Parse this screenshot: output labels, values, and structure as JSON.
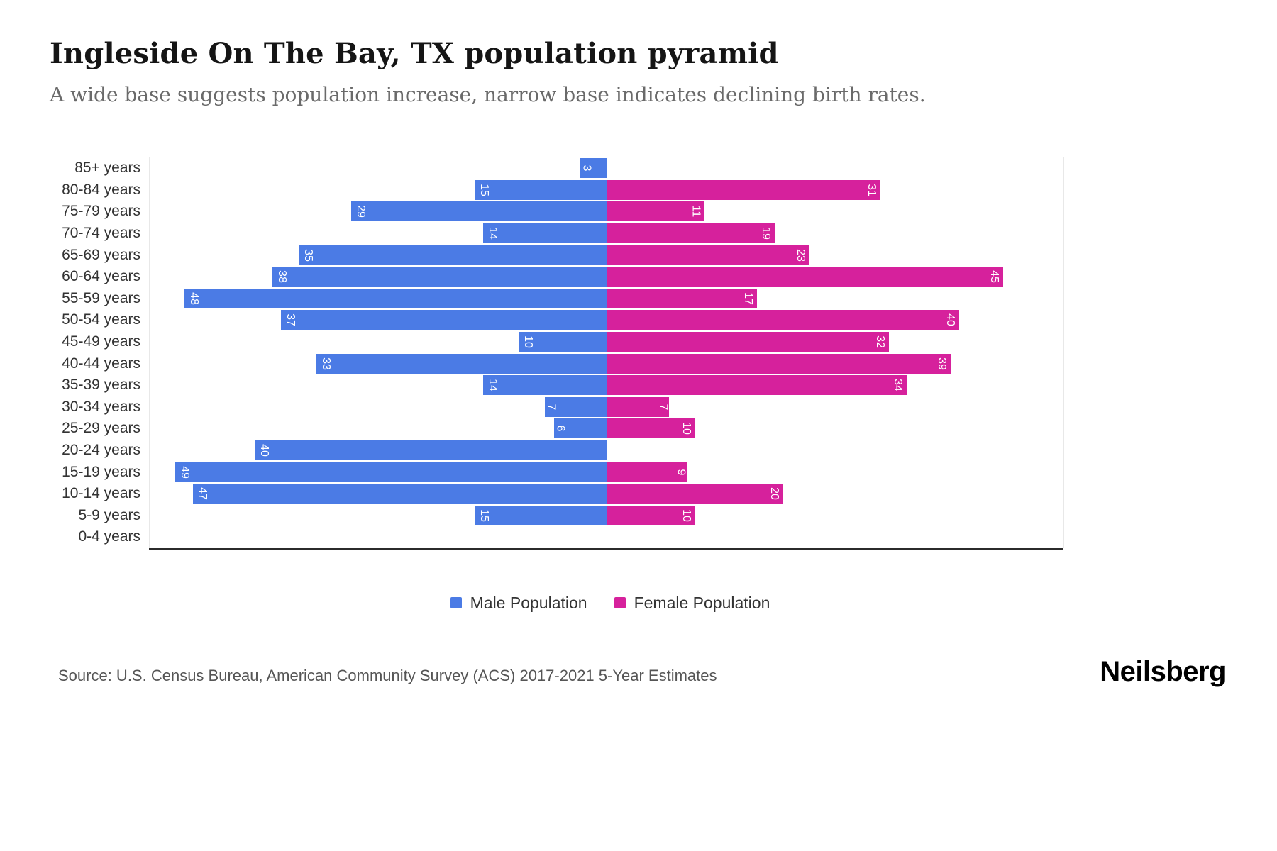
{
  "chart_data": {
    "type": "bar",
    "variant": "population-pyramid",
    "title": "Ingleside On The Bay, TX population pyramid",
    "subtitle": "A wide base suggests population increase, narrow base indicates declining birth rates.",
    "categories": [
      "85+ years",
      "80-84 years",
      "75-79 years",
      "70-74 years",
      "65-69 years",
      "60-64 years",
      "55-59 years",
      "50-54 years",
      "45-49 years",
      "40-44 years",
      "35-39 years",
      "30-34 years",
      "25-29 years",
      "20-24 years",
      "15-19 years",
      "10-14 years",
      "5-9 years",
      "0-4 years"
    ],
    "series": [
      {
        "name": "Male Population",
        "color": "#4b7be5",
        "values": [
          3,
          15,
          29,
          14,
          35,
          38,
          48,
          37,
          10,
          33,
          14,
          7,
          6,
          40,
          49,
          47,
          15,
          0
        ]
      },
      {
        "name": "Female Population",
        "color": "#d6219c",
        "values": [
          0,
          31,
          11,
          19,
          23,
          45,
          17,
          40,
          32,
          39,
          34,
          7,
          10,
          0,
          9,
          20,
          10,
          0
        ]
      }
    ],
    "xmax_per_side": 52,
    "grid": "vertical-light",
    "legend_position": "bottom"
  },
  "footer": {
    "source": "Source: U.S. Census Bureau, American Community Survey (ACS) 2017-2021 5-Year Estimates",
    "logo": "Neilsberg"
  }
}
